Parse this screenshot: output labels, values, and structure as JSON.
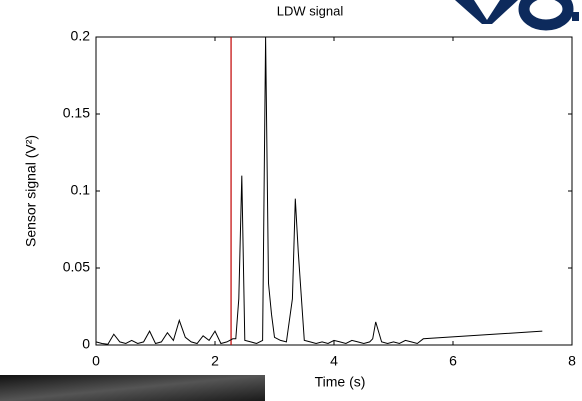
{
  "chart_data": {
    "type": "line",
    "title": "LDW signal",
    "xlabel": "Time (s)",
    "ylabel": "Sensor signal (V²)",
    "xlim": [
      0,
      8
    ],
    "xticks": [
      0,
      2,
      4,
      6,
      8
    ],
    "ylim": [
      0,
      0.2
    ],
    "yticks": [
      0,
      0.05,
      0.1,
      0.15,
      0.2
    ],
    "marker_x": 2.27,
    "marker_color": "#c00000",
    "series": [
      {
        "color": "#000000",
        "x": [
          0,
          0.1,
          0.2,
          0.3,
          0.4,
          0.5,
          0.6,
          0.7,
          0.8,
          0.9,
          1.0,
          1.1,
          1.2,
          1.3,
          1.4,
          1.5,
          1.6,
          1.7,
          1.8,
          1.9,
          2.0,
          2.1,
          2.2,
          2.3,
          2.35,
          2.4,
          2.45,
          2.5,
          2.6,
          2.7,
          2.8,
          2.85,
          2.9,
          2.95,
          3.0,
          3.1,
          3.2,
          3.3,
          3.35,
          3.4,
          3.5,
          3.6,
          3.7,
          3.8,
          3.9,
          4.0,
          4.1,
          4.2,
          4.3,
          4.4,
          4.5,
          4.6,
          4.65,
          4.7,
          4.8,
          4.9,
          5.0,
          5.1,
          5.2,
          5.3,
          5.4,
          5.5,
          7.5
        ],
        "values": [
          0.002,
          0.001,
          0.0005,
          0.007,
          0.002,
          0.001,
          0.003,
          0.001,
          0.002,
          0.009,
          0.001,
          0.002,
          0.008,
          0.003,
          0.016,
          0.005,
          0.002,
          0.001,
          0.006,
          0.003,
          0.009,
          0.001,
          0.002,
          0.004,
          0.004,
          0.03,
          0.11,
          0.003,
          0.002,
          0.001,
          0.003,
          0.2,
          0.04,
          0.02,
          0.005,
          0.003,
          0.002,
          0.03,
          0.095,
          0.06,
          0.003,
          0.002,
          0.001,
          0.002,
          0.001,
          0.003,
          0.002,
          0.001,
          0.003,
          0.002,
          0.001,
          0.002,
          0.004,
          0.015,
          0.002,
          0.001,
          0.002,
          0.001,
          0.003,
          0.002,
          0.001,
          0.004,
          0.009
        ]
      }
    ]
  }
}
